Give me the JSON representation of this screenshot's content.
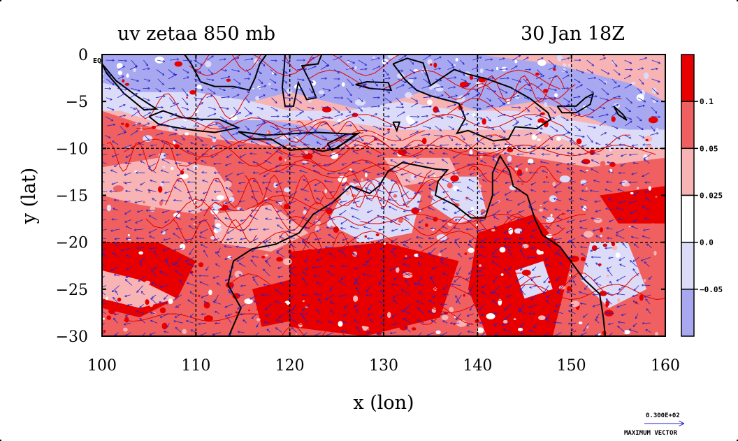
{
  "titles": {
    "left": "uv zetaa 850 mb",
    "right": "30 Jan 18Z"
  },
  "axes": {
    "xlabel": "x (lon)",
    "ylabel": "y (lat)",
    "xticks": [
      "100",
      "110",
      "120",
      "130",
      "140",
      "150",
      "160"
    ],
    "yticks": [
      "0",
      "−5",
      "−10",
      "−15",
      "−20",
      "−25",
      "−30"
    ],
    "corner_label": "EQ"
  },
  "colorbar": {
    "labels": [
      "0.1",
      "0.05",
      "0.025",
      "0.0",
      "−0.05"
    ],
    "colors": [
      "#e80000",
      "#f06060",
      "#f8b4b4",
      "#ffffff",
      "#dcdcf8",
      "#a8a8f0"
    ]
  },
  "vector_key": {
    "value": "0.300E+02",
    "label": "MAXIMUM VECTOR"
  },
  "map": {
    "lon_range": [
      100,
      160
    ],
    "lat_range": [
      -30,
      0
    ],
    "fill_colors": {
      "strong_positive": "#e80000",
      "positive": "#f06060",
      "weak_positive": "#f8b4b4",
      "neutral": "#ffffff",
      "weak_negative": "#dcdcf8",
      "negative": "#a8a8f0"
    },
    "contour_color": "#e00000",
    "vector_color": "#2222cc",
    "coast_color": "#000000"
  }
}
